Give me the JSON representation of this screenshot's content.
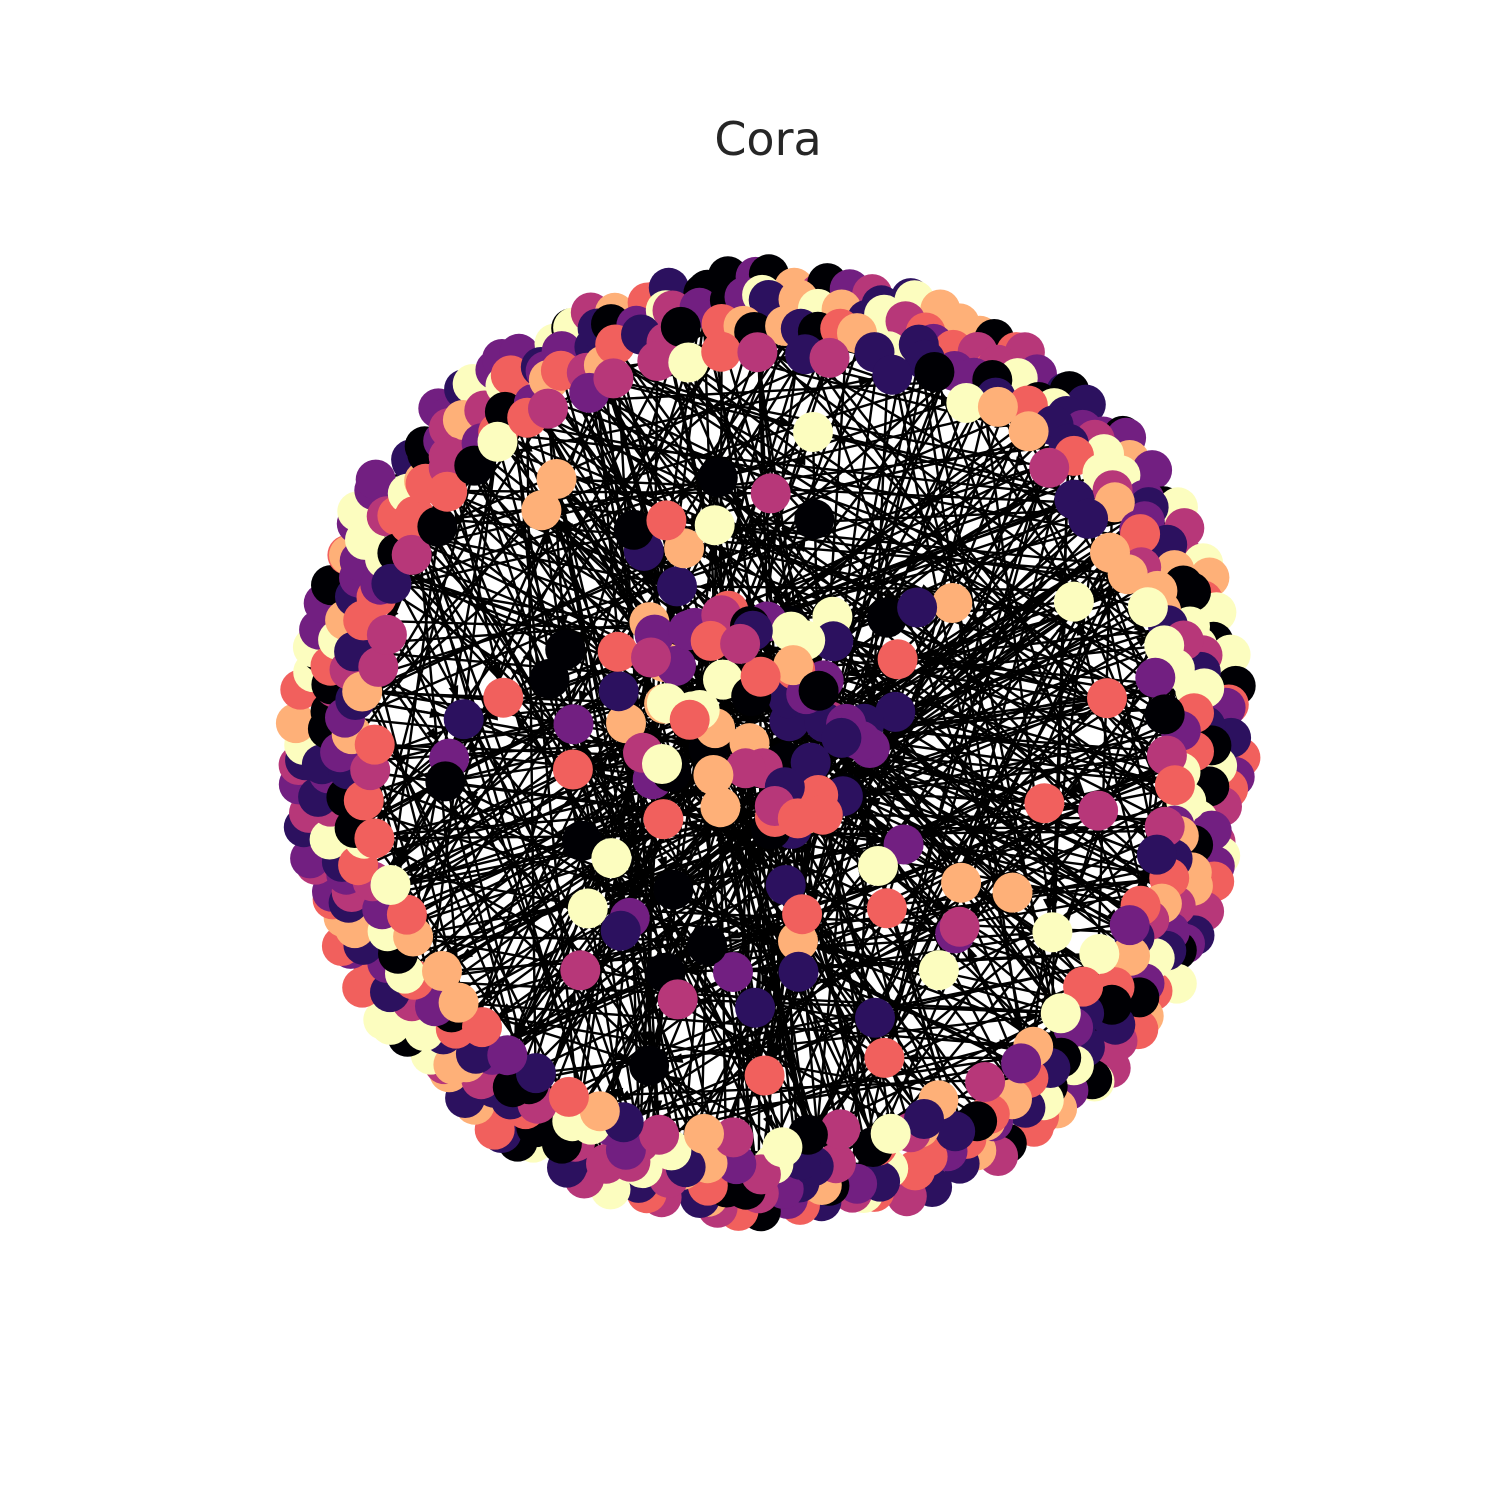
{
  "title": "Cora",
  "graph": {
    "layout": "circular-cluster",
    "edge_color": "#000000",
    "node_classes": 7,
    "palette": [
      "#000004",
      "#2c115f",
      "#721f81",
      "#b73779",
      "#f1605d",
      "#feb078",
      "#fcfdbf"
    ],
    "directed": true
  }
}
